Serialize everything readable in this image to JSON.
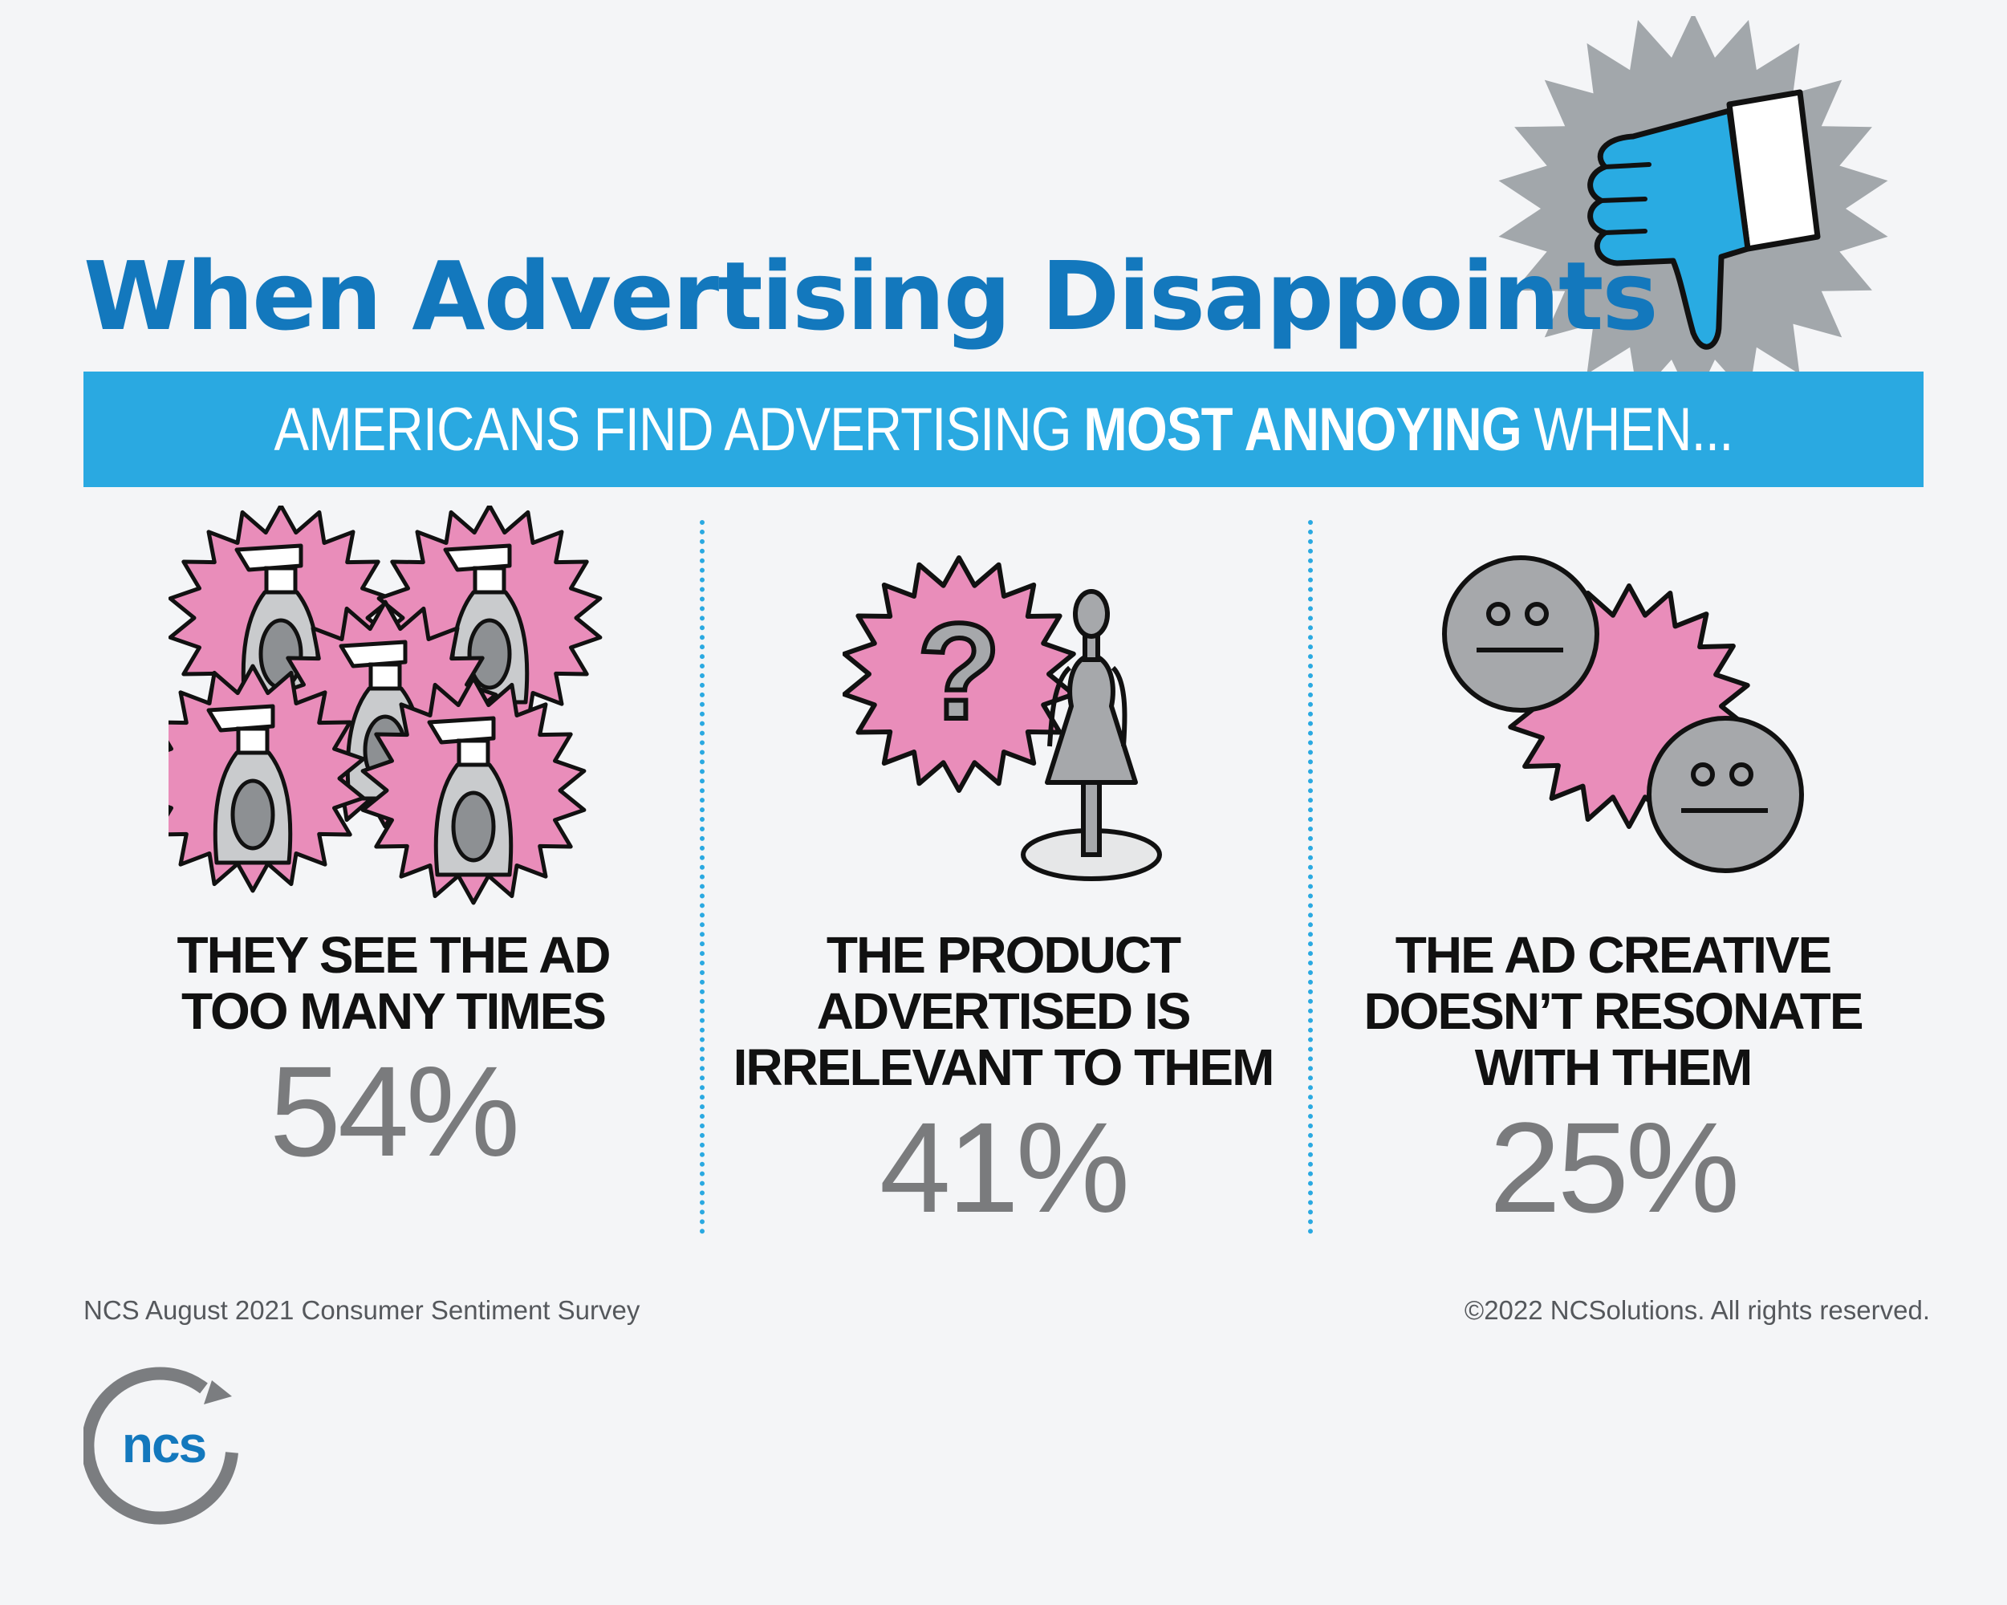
{
  "header": {
    "title": "When Advertising Disappoints",
    "banner_pre": "AMERICANS FIND ADVERTISING",
    "banner_strong": "MOST ANNOYING",
    "banner_post": "WHEN..."
  },
  "items": [
    {
      "lines": [
        "THEY SEE THE AD",
        "TOO MANY TIMES"
      ],
      "percent": "54%",
      "icon": "spray-bottles-bursts-icon"
    },
    {
      "lines": [
        "THE PRODUCT",
        "ADVERTISED IS",
        "IRRELEVANT TO THEM"
      ],
      "percent": "41%",
      "icon": "question-mannequin-icon"
    },
    {
      "lines": [
        "THE AD CREATIVE",
        "DOESN’T RESONATE",
        "WITH THEM"
      ],
      "percent": "25%",
      "icon": "neutral-faces-icon"
    }
  ],
  "footer": {
    "source": "NCS August 2021 Consumer Sentiment Survey",
    "copyright": "©2022 NCSolutions. All rights reserved."
  },
  "logo": {
    "text": "ncs"
  },
  "colors": {
    "title_blue": "#1378bd",
    "banner_blue": "#2aa9e1",
    "burst_pink": "#e98dba",
    "burst_gray": "#a2a7ab",
    "icon_gray": "#a6a8ab",
    "thumb_blue": "#29abe2",
    "percent_gray": "#7a7b7d"
  }
}
